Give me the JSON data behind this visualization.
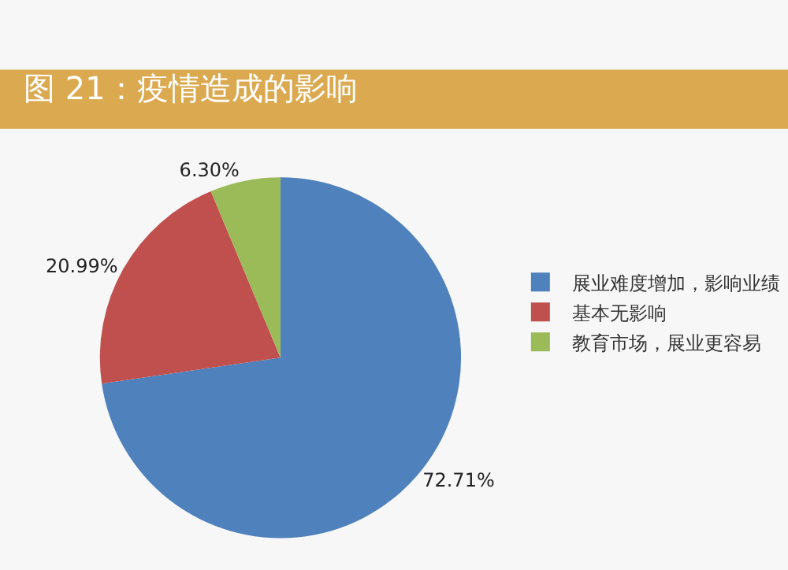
{
  "chart_data": {
    "type": "pie",
    "title": "图 21：疫情造成的影响",
    "categories": [
      "展业难度增加，影响业绩",
      "基本无影响",
      "教育市场，展业更容易"
    ],
    "values": [
      72.71,
      20.99,
      6.3
    ],
    "colors": [
      "#4f81bd",
      "#c0504d",
      "#9bbb59"
    ],
    "value_labels": [
      "72.71%",
      "20.99%",
      "6.30%"
    ],
    "legend": "right"
  }
}
